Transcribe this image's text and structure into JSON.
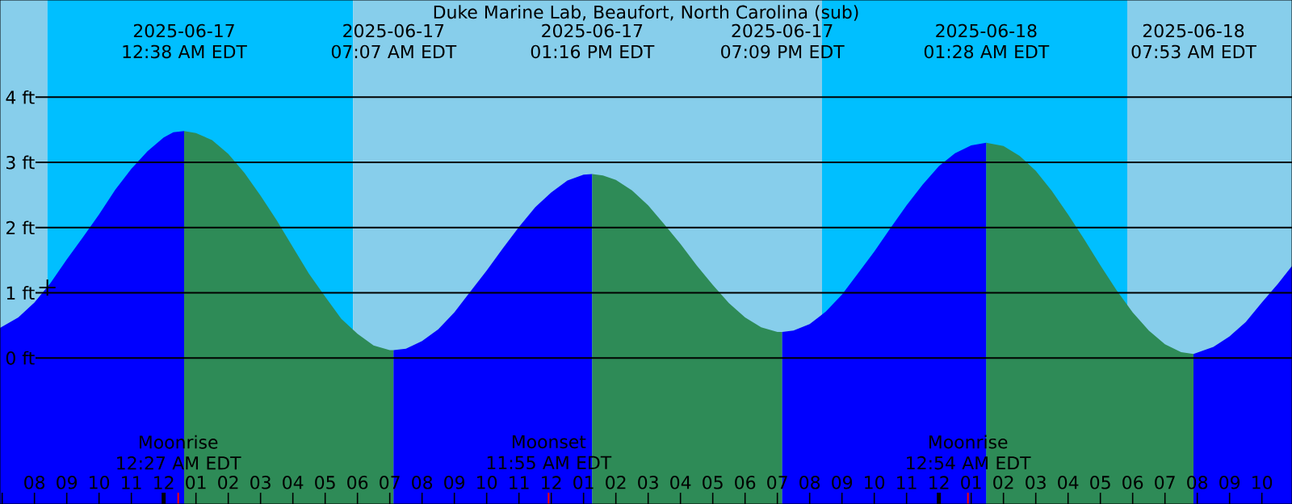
{
  "chart_data": {
    "type": "area",
    "title": "Duke Marine Lab, Beaufort, North Carolina (sub)",
    "xlim": [
      "2025-06-16T18:56",
      "2025-06-18T10:56"
    ],
    "ylim": [
      -2.24,
      5.49
    ],
    "xticks": [
      {
        "value": "2025-06-16T19:00",
        "label": null
      },
      {
        "value": "2025-06-16T20:00",
        "label": "08"
      },
      {
        "value": "2025-06-16T21:00",
        "label": "09"
      },
      {
        "value": "2025-06-16T22:00",
        "label": "10"
      },
      {
        "value": "2025-06-16T23:00",
        "label": "11"
      },
      {
        "value": "2025-06-17T00:00",
        "label": "12"
      },
      {
        "value": "2025-06-17T01:00",
        "label": "01"
      },
      {
        "value": "2025-06-17T02:00",
        "label": "02"
      },
      {
        "value": "2025-06-17T03:00",
        "label": "03"
      },
      {
        "value": "2025-06-17T04:00",
        "label": "04"
      },
      {
        "value": "2025-06-17T05:00",
        "label": "05"
      },
      {
        "value": "2025-06-17T06:00",
        "label": "06"
      },
      {
        "value": "2025-06-17T07:00",
        "label": "07"
      },
      {
        "value": "2025-06-17T08:00",
        "label": "08"
      },
      {
        "value": "2025-06-17T09:00",
        "label": "09"
      },
      {
        "value": "2025-06-17T10:00",
        "label": "10"
      },
      {
        "value": "2025-06-17T11:00",
        "label": "11"
      },
      {
        "value": "2025-06-17T12:00",
        "label": "12"
      },
      {
        "value": "2025-06-17T13:00",
        "label": "01"
      },
      {
        "value": "2025-06-17T14:00",
        "label": "02"
      },
      {
        "value": "2025-06-17T15:00",
        "label": "03"
      },
      {
        "value": "2025-06-17T16:00",
        "label": "04"
      },
      {
        "value": "2025-06-17T17:00",
        "label": "05"
      },
      {
        "value": "2025-06-17T18:00",
        "label": "06"
      },
      {
        "value": "2025-06-17T19:00",
        "label": "07"
      },
      {
        "value": "2025-06-17T20:00",
        "label": "08"
      },
      {
        "value": "2025-06-17T21:00",
        "label": "09"
      },
      {
        "value": "2025-06-17T22:00",
        "label": "10"
      },
      {
        "value": "2025-06-17T23:00",
        "label": "11"
      },
      {
        "value": "2025-06-18T00:00",
        "label": "12"
      },
      {
        "value": "2025-06-18T01:00",
        "label": "01"
      },
      {
        "value": "2025-06-18T02:00",
        "label": "02"
      },
      {
        "value": "2025-06-18T03:00",
        "label": "03"
      },
      {
        "value": "2025-06-18T04:00",
        "label": "04"
      },
      {
        "value": "2025-06-18T05:00",
        "label": "05"
      },
      {
        "value": "2025-06-18T06:00",
        "label": "06"
      },
      {
        "value": "2025-06-18T07:00",
        "label": "07"
      },
      {
        "value": "2025-06-18T08:00",
        "label": "08"
      },
      {
        "value": "2025-06-18T09:00",
        "label": "09"
      },
      {
        "value": "2025-06-18T10:00",
        "label": "10"
      }
    ],
    "yticks": [
      {
        "value": 0,
        "label": "0 ft"
      },
      {
        "value": 1,
        "label": "1 ft"
      },
      {
        "value": 2,
        "label": "2 ft"
      },
      {
        "value": 3,
        "label": "3 ft"
      },
      {
        "value": 4,
        "label": "4 ft"
      }
    ],
    "grid": "y",
    "bands": [
      {
        "axis": "x",
        "from": "2025-06-16T18:56",
        "to": "2025-06-16T20:24",
        "color": "#87ceeb"
      },
      {
        "axis": "x",
        "from": "2025-06-16T20:24",
        "to": "2025-06-17T05:52",
        "color": "#00bfff"
      },
      {
        "axis": "x",
        "from": "2025-06-17T05:52",
        "to": "2025-06-17T20:23",
        "color": "#87ceeb"
      },
      {
        "axis": "x",
        "from": "2025-06-17T20:23",
        "to": "2025-06-18T05:50",
        "color": "#00bfff"
      },
      {
        "axis": "x",
        "from": "2025-06-18T05:50",
        "to": "2025-06-18T10:56",
        "color": "#87ceeb"
      }
    ],
    "series": [
      {
        "color": "#0000ff",
        "x": [
          "2025-06-16T18:56",
          "2025-06-16T19:30",
          "2025-06-16T20:00",
          "2025-06-16T20:30",
          "2025-06-16T21:00",
          "2025-06-16T21:30",
          "2025-06-16T22:00",
          "2025-06-16T22:30",
          "2025-06-16T23:00",
          "2025-06-16T23:30",
          "2025-06-17T00:00",
          "2025-06-17T00:18",
          "2025-06-17T00:38"
        ],
        "values": [
          0.46,
          0.62,
          0.85,
          1.15,
          1.51,
          1.85,
          2.2,
          2.58,
          2.9,
          3.17,
          3.38,
          3.46,
          3.48
        ]
      },
      {
        "color": "#2e8b57",
        "x": [
          "2025-06-17T00:38",
          "2025-06-17T01:00",
          "2025-06-17T01:30",
          "2025-06-17T02:00",
          "2025-06-17T02:30",
          "2025-06-17T03:00",
          "2025-06-17T03:30",
          "2025-06-17T04:00",
          "2025-06-17T04:30",
          "2025-06-17T05:00",
          "2025-06-17T05:30",
          "2025-06-17T06:00",
          "2025-06-17T06:30",
          "2025-06-17T07:00",
          "2025-06-17T07:07"
        ],
        "values": [
          3.48,
          3.45,
          3.34,
          3.13,
          2.84,
          2.49,
          2.11,
          1.7,
          1.29,
          0.94,
          0.6,
          0.37,
          0.19,
          0.12,
          0.12
        ]
      },
      {
        "color": "#0000ff",
        "x": [
          "2025-06-17T07:07",
          "2025-06-17T07:30",
          "2025-06-17T08:00",
          "2025-06-17T08:30",
          "2025-06-17T09:00",
          "2025-06-17T09:30",
          "2025-06-17T10:00",
          "2025-06-17T10:30",
          "2025-06-17T11:00",
          "2025-06-17T11:30",
          "2025-06-17T12:00",
          "2025-06-17T12:30",
          "2025-06-17T13:00",
          "2025-06-17T13:16"
        ],
        "values": [
          0.12,
          0.14,
          0.26,
          0.44,
          0.7,
          1.02,
          1.34,
          1.68,
          2.01,
          2.31,
          2.54,
          2.72,
          2.81,
          2.82
        ]
      },
      {
        "color": "#2e8b57",
        "x": [
          "2025-06-17T13:16",
          "2025-06-17T13:36",
          "2025-06-17T14:00",
          "2025-06-17T14:30",
          "2025-06-17T15:00",
          "2025-06-17T15:30",
          "2025-06-17T16:00",
          "2025-06-17T16:30",
          "2025-06-17T17:00",
          "2025-06-17T17:30",
          "2025-06-17T18:00",
          "2025-06-17T18:30",
          "2025-06-17T19:00",
          "2025-06-17T19:09"
        ],
        "values": [
          2.82,
          2.8,
          2.73,
          2.57,
          2.34,
          2.05,
          1.75,
          1.42,
          1.12,
          0.84,
          0.62,
          0.47,
          0.4,
          0.4
        ]
      },
      {
        "color": "#0000ff",
        "x": [
          "2025-06-17T19:09",
          "2025-06-17T19:30",
          "2025-06-17T20:00",
          "2025-06-17T20:30",
          "2025-06-17T21:00",
          "2025-06-17T21:30",
          "2025-06-17T22:00",
          "2025-06-17T22:30",
          "2025-06-17T23:00",
          "2025-06-17T23:30",
          "2025-06-18T00:00",
          "2025-06-18T00:30",
          "2025-06-18T01:00",
          "2025-06-18T01:28"
        ],
        "values": [
          0.4,
          0.42,
          0.52,
          0.71,
          0.97,
          1.3,
          1.63,
          1.99,
          2.34,
          2.66,
          2.94,
          3.14,
          3.26,
          3.3
        ]
      },
      {
        "color": "#2e8b57",
        "x": [
          "2025-06-18T01:28",
          "2025-06-18T02:00",
          "2025-06-18T02:30",
          "2025-06-18T03:00",
          "2025-06-18T03:30",
          "2025-06-18T04:00",
          "2025-06-18T04:30",
          "2025-06-18T05:00",
          "2025-06-18T05:30",
          "2025-06-18T06:00",
          "2025-06-18T06:30",
          "2025-06-18T07:00",
          "2025-06-18T07:30",
          "2025-06-18T07:53"
        ],
        "values": [
          3.3,
          3.25,
          3.1,
          2.87,
          2.56,
          2.2,
          1.82,
          1.42,
          1.04,
          0.7,
          0.42,
          0.21,
          0.09,
          0.06
        ]
      },
      {
        "color": "#0000ff",
        "x": [
          "2025-06-18T07:53",
          "2025-06-18T08:30",
          "2025-06-18T09:00",
          "2025-06-18T09:30",
          "2025-06-18T10:00",
          "2025-06-18T10:30",
          "2025-06-18T10:56"
        ],
        "values": [
          0.06,
          0.17,
          0.33,
          0.55,
          0.85,
          1.14,
          1.41
        ]
      },
      {
        "type": "scatter",
        "marker": "cross",
        "color": "#000000",
        "x": [
          "2025-06-16T20:24"
        ],
        "values": [
          1.08
        ]
      }
    ],
    "ref_lines": [
      {
        "axis": "x",
        "value": "2025-06-17T00:27",
        "color": "#ff0000",
        "label": "Moonrise 12:27 AM EDT"
      },
      {
        "axis": "x",
        "value": "2025-06-17T11:55",
        "color": "#ff0000",
        "label": "Moonset 11:55 AM EDT"
      },
      {
        "axis": "x",
        "value": "2025-06-18T00:54",
        "color": "#ff0000",
        "label": "Moonrise 12:54 AM EDT"
      }
    ],
    "annotations": [
      "2025-06-17 12:38 AM EDT",
      "2025-06-17 07:07 AM EDT",
      "2025-06-17 01:16 PM EDT",
      "2025-06-17 07:09 PM EDT",
      "2025-06-18 01:28 AM EDT",
      "2025-06-18 07:53 AM EDT"
    ]
  }
}
